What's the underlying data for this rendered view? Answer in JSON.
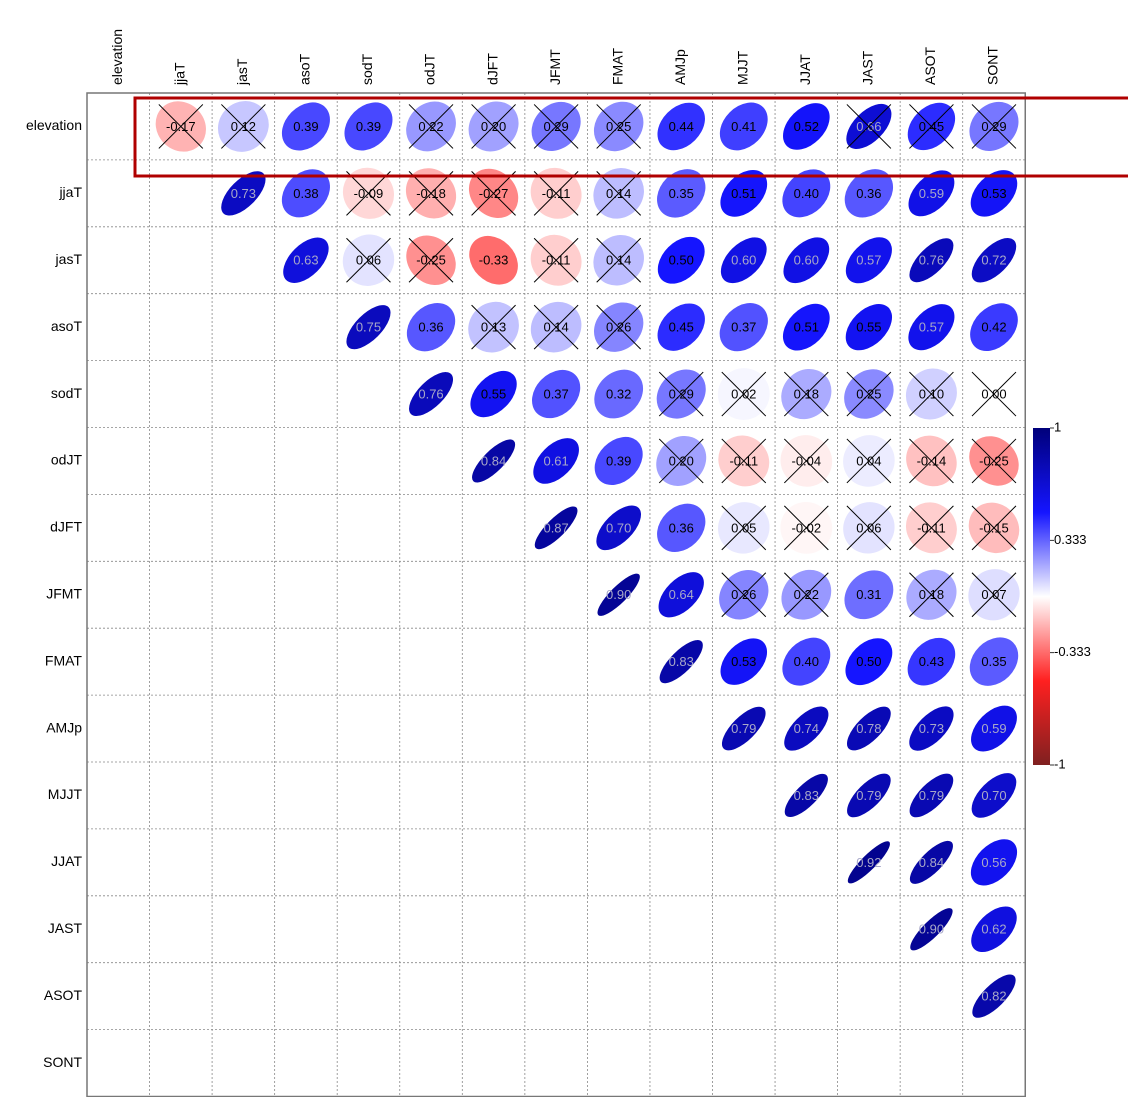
{
  "chart_data": {
    "type": "corrplot",
    "labels": [
      "elevation",
      "jjaT",
      "jasT",
      "asoT",
      "sodT",
      "odJT",
      "dJFT",
      "JFMT",
      "FMAT",
      "AMJp",
      "MJJT",
      "JJAT",
      "JAST",
      "ASOT",
      "SONT"
    ],
    "values": [
      [
        null,
        -0.17,
        0.12,
        0.39,
        0.39,
        0.22,
        0.2,
        0.29,
        0.25,
        0.44,
        0.41,
        0.52,
        0.66,
        0.45,
        0.29
      ],
      [
        null,
        null,
        0.73,
        0.38,
        -0.09,
        -0.18,
        -0.27,
        -0.11,
        0.14,
        0.35,
        0.51,
        0.4,
        0.36,
        0.59,
        0.53
      ],
      [
        null,
        null,
        null,
        0.63,
        0.06,
        -0.25,
        -0.33,
        -0.11,
        0.14,
        0.5,
        0.6,
        0.6,
        0.57,
        0.76,
        0.72
      ],
      [
        null,
        null,
        null,
        null,
        0.75,
        0.36,
        0.13,
        0.14,
        0.26,
        0.45,
        0.37,
        0.51,
        0.55,
        0.57,
        0.42
      ],
      [
        null,
        null,
        null,
        null,
        null,
        0.76,
        0.55,
        0.37,
        0.32,
        0.29,
        0.02,
        0.18,
        0.25,
        0.1,
        0.0
      ],
      [
        null,
        null,
        null,
        null,
        null,
        null,
        0.84,
        0.61,
        0.39,
        0.2,
        -0.11,
        -0.04,
        0.04,
        -0.14,
        -0.25
      ],
      [
        null,
        null,
        null,
        null,
        null,
        null,
        null,
        0.87,
        0.7,
        0.36,
        0.05,
        -0.02,
        0.06,
        -0.11,
        -0.15
      ],
      [
        null,
        null,
        null,
        null,
        null,
        null,
        null,
        null,
        0.9,
        0.64,
        0.26,
        0.22,
        0.31,
        0.18,
        0.07
      ],
      [
        null,
        null,
        null,
        null,
        null,
        null,
        null,
        null,
        null,
        0.83,
        0.53,
        0.4,
        0.5,
        0.43,
        0.35
      ],
      [
        null,
        null,
        null,
        null,
        null,
        null,
        null,
        null,
        null,
        null,
        0.79,
        0.74,
        0.78,
        0.73,
        0.59
      ],
      [
        null,
        null,
        null,
        null,
        null,
        null,
        null,
        null,
        null,
        null,
        null,
        0.83,
        0.79,
        0.79,
        0.7
      ],
      [
        null,
        null,
        null,
        null,
        null,
        null,
        null,
        null,
        null,
        null,
        null,
        null,
        0.92,
        0.84,
        0.56
      ],
      [
        null,
        null,
        null,
        null,
        null,
        null,
        null,
        null,
        null,
        null,
        null,
        null,
        null,
        0.9,
        0.62
      ],
      [
        null,
        null,
        null,
        null,
        null,
        null,
        null,
        null,
        null,
        null,
        null,
        null,
        null,
        null,
        0.82
      ],
      [
        null,
        null,
        null,
        null,
        null,
        null,
        null,
        null,
        null,
        null,
        null,
        null,
        null,
        null,
        null
      ]
    ],
    "value_labels": [
      [
        null,
        "-0.17",
        "0.12",
        "0.39",
        "0.39",
        "0.22",
        "0.20",
        "0.29",
        "0.25",
        "0.44",
        "0.41",
        "0.52",
        "0.66",
        "0.45",
        "0.29"
      ],
      [
        null,
        null,
        "0.73",
        "0.38",
        "-0.09",
        "-0.18",
        "-0.27",
        "-0.11",
        "0.14",
        "0.35",
        "0.51",
        "0.40",
        "0.36",
        "0.59",
        "0.53"
      ],
      [
        null,
        null,
        null,
        "0.63",
        "0.06",
        "-0.25",
        "-0.33",
        "-0.11",
        "0.14",
        "0.50",
        "0.60",
        "0.60",
        "0.57",
        "0.76",
        "0.72"
      ],
      [
        null,
        null,
        null,
        null,
        "0.75",
        "0.36",
        "0.13",
        "0.14",
        "0.26",
        "0.45",
        "0.37",
        "0.51",
        "0.55",
        "0.57",
        "0.42"
      ],
      [
        null,
        null,
        null,
        null,
        null,
        "0.76",
        "0.55",
        "0.37",
        "0.32",
        "0.29",
        "0.02",
        "0.18",
        "0.25",
        "0.10",
        "0.00"
      ],
      [
        null,
        null,
        null,
        null,
        null,
        null,
        "0.84",
        "0.61",
        "0.39",
        "0.20",
        "-0.11",
        "-0.04",
        "0.04",
        "-0.14",
        "-0.25"
      ],
      [
        null,
        null,
        null,
        null,
        null,
        null,
        null,
        "0.87",
        "0.70",
        "0.36",
        "0.05",
        "-0.02",
        "0.06",
        "-0.11",
        "-0.15"
      ],
      [
        null,
        null,
        null,
        null,
        null,
        null,
        null,
        null,
        "0.90",
        "0.64",
        "0.26",
        "0.22",
        "0.31",
        "0.18",
        "0.07"
      ],
      [
        null,
        null,
        null,
        null,
        null,
        null,
        null,
        null,
        null,
        "0.83",
        "0.53",
        "0.40",
        "0.50",
        "0.43",
        "0.35"
      ],
      [
        null,
        null,
        null,
        null,
        null,
        null,
        null,
        null,
        null,
        null,
        "0.79",
        "0.74",
        "0.78",
        "0.73",
        "0.59"
      ],
      [
        null,
        null,
        null,
        null,
        null,
        null,
        null,
        null,
        null,
        null,
        null,
        "0.83",
        "0.79",
        "0.79",
        "0.70"
      ],
      [
        null,
        null,
        null,
        null,
        null,
        null,
        null,
        null,
        null,
        null,
        null,
        null,
        "0.92",
        "0.84",
        "0.56"
      ],
      [
        null,
        null,
        null,
        null,
        null,
        null,
        null,
        null,
        null,
        null,
        null,
        null,
        null,
        "0.90",
        "0.62"
      ],
      [
        null,
        null,
        null,
        null,
        null,
        null,
        null,
        null,
        null,
        null,
        null,
        null,
        null,
        null,
        "0.82"
      ],
      [
        null,
        null,
        null,
        null,
        null,
        null,
        null,
        null,
        null,
        null,
        null,
        null,
        null,
        null,
        null
      ]
    ],
    "crossed": [
      [
        null,
        true,
        true,
        false,
        false,
        true,
        true,
        true,
        true,
        false,
        false,
        false,
        true,
        true,
        true
      ],
      [
        null,
        null,
        false,
        false,
        true,
        true,
        true,
        true,
        true,
        false,
        false,
        false,
        false,
        false,
        false
      ],
      [
        null,
        null,
        null,
        false,
        true,
        true,
        false,
        true,
        true,
        false,
        false,
        false,
        false,
        false,
        false
      ],
      [
        null,
        null,
        null,
        null,
        false,
        false,
        true,
        true,
        true,
        false,
        false,
        false,
        false,
        false,
        false
      ],
      [
        null,
        null,
        null,
        null,
        null,
        false,
        false,
        false,
        false,
        true,
        true,
        true,
        true,
        true,
        true
      ],
      [
        null,
        null,
        null,
        null,
        null,
        null,
        false,
        false,
        false,
        true,
        true,
        true,
        true,
        true,
        true
      ],
      [
        null,
        null,
        null,
        null,
        null,
        null,
        null,
        false,
        false,
        false,
        true,
        true,
        true,
        true,
        true
      ],
      [
        null,
        null,
        null,
        null,
        null,
        null,
        null,
        null,
        false,
        false,
        true,
        true,
        false,
        true,
        true
      ],
      [
        null,
        null,
        null,
        null,
        null,
        null,
        null,
        null,
        null,
        false,
        false,
        false,
        false,
        false,
        false
      ],
      [
        null,
        null,
        null,
        null,
        null,
        null,
        null,
        null,
        null,
        null,
        false,
        false,
        false,
        false,
        false
      ],
      [
        null,
        null,
        null,
        null,
        null,
        null,
        null,
        null,
        null,
        null,
        null,
        false,
        false,
        false,
        false
      ],
      [
        null,
        null,
        null,
        null,
        null,
        null,
        null,
        null,
        null,
        null,
        null,
        null,
        false,
        false,
        false
      ],
      [
        null,
        null,
        null,
        null,
        null,
        null,
        null,
        null,
        null,
        null,
        null,
        null,
        null,
        false,
        false
      ],
      [
        null,
        null,
        null,
        null,
        null,
        null,
        null,
        null,
        null,
        null,
        null,
        null,
        null,
        null,
        false
      ],
      [
        null,
        null,
        null,
        null,
        null,
        null,
        null,
        null,
        null,
        null,
        null,
        null,
        null,
        null,
        null
      ]
    ],
    "colors": [
      "#7f2020",
      "#ff2020",
      "#ffffff",
      "#1515ff",
      "#00007a"
    ],
    "clim": [
      -1,
      1
    ],
    "cticks": [
      1,
      0.333,
      -0.333,
      -1
    ]
  }
}
